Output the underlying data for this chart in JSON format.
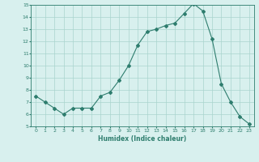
{
  "x": [
    0,
    1,
    2,
    3,
    4,
    5,
    6,
    7,
    8,
    9,
    10,
    11,
    12,
    13,
    14,
    15,
    16,
    17,
    18,
    19,
    20,
    21,
    22,
    23
  ],
  "y": [
    7.5,
    7.0,
    6.5,
    6.0,
    6.5,
    6.5,
    6.5,
    7.5,
    7.8,
    8.8,
    10.0,
    11.7,
    12.8,
    13.0,
    13.3,
    13.5,
    14.3,
    15.1,
    14.5,
    12.2,
    8.5,
    7.0,
    5.8,
    5.2
  ],
  "xlabel": "Humidex (Indice chaleur)",
  "xlim": [
    -0.5,
    23.5
  ],
  "ylim": [
    5,
    15
  ],
  "yticks": [
    5,
    6,
    7,
    8,
    9,
    10,
    11,
    12,
    13,
    14,
    15
  ],
  "xticks": [
    0,
    1,
    2,
    3,
    4,
    5,
    6,
    7,
    8,
    9,
    10,
    11,
    12,
    13,
    14,
    15,
    16,
    17,
    18,
    19,
    20,
    21,
    22,
    23
  ],
  "line_color": "#2e7d6e",
  "bg_color": "#d8f0ee",
  "grid_color": "#aad4ce",
  "tick_label_color": "#2e7d6e",
  "xlabel_color": "#2e7d6e"
}
